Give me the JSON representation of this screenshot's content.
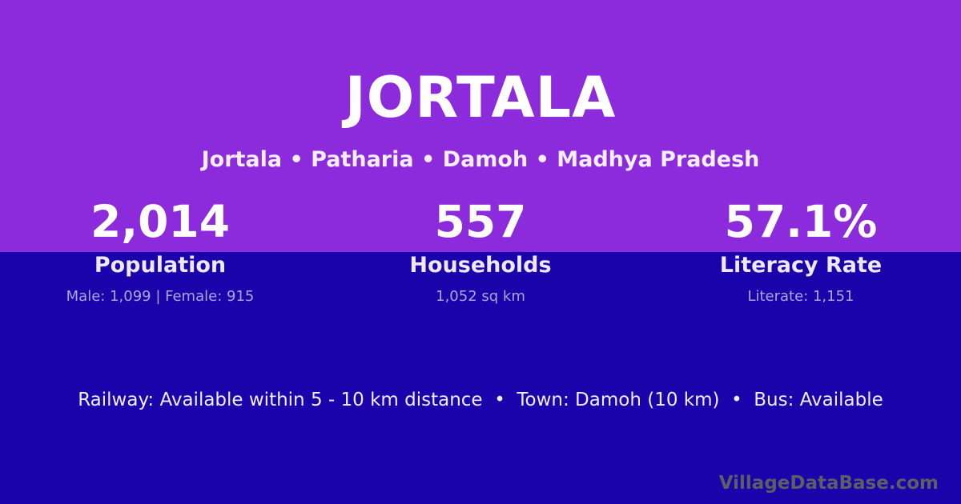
{
  "page": {
    "title": "JORTALA",
    "breadcrumb": "Jortala • Patharia • Damoh • Madhya Pradesh"
  },
  "stats": {
    "items": [
      {
        "value": "2,014",
        "label": "Population",
        "detail": "Male: 1,099 | Female: 915"
      },
      {
        "value": "557",
        "label": "Households",
        "detail": "1,052 sq km"
      },
      {
        "value": "57.1%",
        "label": "Literacy Rate",
        "detail": "Literate: 1,151"
      }
    ]
  },
  "info_line": "Railway: Available within 5 - 10 km distance  •  Town: Damoh (10 km)  •  Bus: Available",
  "watermark": "VillageDataBase.com",
  "colors": {
    "top_background": "#8B2BDB",
    "bottom_background": "#1A03AA",
    "text_primary": "#FFFFFF",
    "text_secondary": "#EFE7FA",
    "text_muted": "#AFA5DC",
    "watermark": "#5D5D64"
  }
}
